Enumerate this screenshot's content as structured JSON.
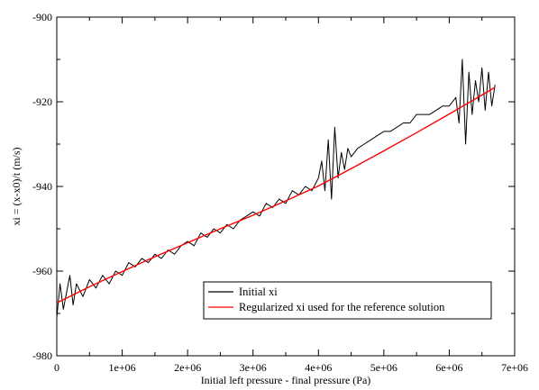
{
  "chart_data": {
    "type": "line",
    "xlabel": "Initial left pressure -  final pressure (Pa)",
    "ylabel": "xi = (x-x0)/t (m/s)",
    "xlim": [
      0,
      7000000
    ],
    "ylim": [
      -980,
      -900
    ],
    "x_ticks": [
      0,
      1000000,
      2000000,
      3000000,
      4000000,
      5000000,
      6000000,
      7000000
    ],
    "x_tick_labels": [
      "0",
      "1e+06",
      "2e+06",
      "3e+06",
      "4e+06",
      "5e+06",
      "6e+06",
      "7e+06"
    ],
    "y_ticks": [
      -980,
      -960,
      -940,
      -920,
      -900
    ],
    "y_tick_labels": [
      "-980",
      "-960",
      "-940",
      "-920",
      "-900"
    ],
    "grid": false,
    "legend_position": "bottom-right",
    "series": [
      {
        "name": "Initial xi",
        "color": "#000000",
        "x": [
          0,
          50000,
          100000,
          150000,
          200000,
          250000,
          300000,
          400000,
          500000,
          600000,
          700000,
          800000,
          900000,
          1000000,
          1100000,
          1200000,
          1300000,
          1400000,
          1500000,
          1600000,
          1700000,
          1800000,
          1900000,
          2000000,
          2100000,
          2200000,
          2300000,
          2400000,
          2500000,
          2600000,
          2700000,
          2800000,
          2900000,
          3000000,
          3100000,
          3200000,
          3300000,
          3400000,
          3500000,
          3600000,
          3700000,
          3800000,
          3900000,
          4000000,
          4050000,
          4100000,
          4150000,
          4200000,
          4250000,
          4300000,
          4350000,
          4400000,
          4450000,
          4500000,
          4600000,
          4700000,
          4800000,
          4900000,
          5000000,
          5100000,
          5200000,
          5300000,
          5400000,
          5500000,
          5600000,
          5700000,
          5800000,
          5900000,
          6000000,
          6100000,
          6150000,
          6200000,
          6250000,
          6300000,
          6350000,
          6400000,
          6450000,
          6500000,
          6550000,
          6600000,
          6650000,
          6700000
        ],
        "y": [
          -971,
          -963,
          -969,
          -965,
          -961,
          -968,
          -963,
          -966,
          -962,
          -964,
          -961,
          -963,
          -960,
          -961,
          -958,
          -959,
          -957,
          -958,
          -956,
          -957,
          -955,
          -956,
          -954,
          -953,
          -954,
          -951,
          -952,
          -950,
          -951,
          -949,
          -950,
          -948,
          -947,
          -946,
          -947,
          -944,
          -945,
          -943,
          -944,
          -941,
          -942,
          -940,
          -941,
          -938,
          -934,
          -941,
          -929,
          -943,
          -926,
          -938,
          -932,
          -936,
          -931,
          -933,
          -931,
          -930,
          -929,
          -928,
          -927,
          -927,
          -926,
          -925,
          -925,
          -923,
          -923,
          -923,
          -922,
          -921,
          -921,
          -919,
          -925,
          -910,
          -930,
          -913,
          -923,
          -915,
          -920,
          -912,
          -922,
          -913,
          -921,
          -916
        ]
      },
      {
        "name": "Regularized xi used for the reference solution",
        "color": "#ff0000",
        "x": [
          0,
          500000,
          1000000,
          1500000,
          2000000,
          2500000,
          3000000,
          3500000,
          4000000,
          4500000,
          5000000,
          5500000,
          6000000,
          6500000,
          6700000
        ],
        "y": [
          -967.5,
          -963.7,
          -960.1,
          -956.6,
          -953.3,
          -950.0,
          -946.8,
          -943.4,
          -939.9,
          -935.8,
          -931.6,
          -927.3,
          -922.9,
          -918.4,
          -916.6
        ]
      }
    ]
  }
}
